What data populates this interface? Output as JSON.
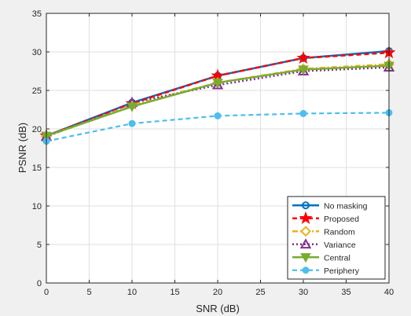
{
  "chart_data": {
    "type": "line",
    "xlabel": "SNR (dB)",
    "ylabel": "PSNR (dB)",
    "xlim": [
      0,
      40
    ],
    "ylim": [
      0,
      35
    ],
    "x_ticks": [
      0,
      5,
      10,
      15,
      20,
      25,
      30,
      35,
      40
    ],
    "y_ticks": [
      0,
      5,
      10,
      15,
      20,
      25,
      30,
      35
    ],
    "grid": true,
    "legend_position": "bottom-right",
    "x": [
      0,
      10,
      20,
      30,
      40
    ],
    "series": [
      {
        "name": "No masking",
        "values": [
          19.1,
          23.4,
          26.9,
          29.2,
          30.1
        ],
        "color": "#0072bd",
        "marker": "circle",
        "dash": "solid",
        "width": 2.5
      },
      {
        "name": "Proposed",
        "values": [
          19.1,
          23.3,
          26.9,
          29.2,
          29.9
        ],
        "color": "#ff0000",
        "marker": "star",
        "dash": "dashed",
        "width": 2.5
      },
      {
        "name": "Random",
        "values": [
          19.0,
          23.1,
          26.0,
          27.8,
          28.4
        ],
        "color": "#edb120",
        "marker": "diamond",
        "dash": "dashdot",
        "width": 2.5
      },
      {
        "name": "Variance",
        "values": [
          19.0,
          23.4,
          25.7,
          27.5,
          28.0
        ],
        "color": "#7e2f8e",
        "marker": "triangle-up",
        "dash": "dotted",
        "width": 2.5
      },
      {
        "name": "Central",
        "values": [
          19.1,
          22.9,
          26.0,
          27.7,
          28.2
        ],
        "color": "#77ac30",
        "marker": "triangle-down",
        "dash": "solid",
        "width": 2.5
      },
      {
        "name": "Periphery",
        "values": [
          18.4,
          20.7,
          21.7,
          22.0,
          22.1
        ],
        "color": "#4dbeee",
        "marker": "filled-circle",
        "dash": "dashed",
        "width": 2.2
      }
    ]
  }
}
